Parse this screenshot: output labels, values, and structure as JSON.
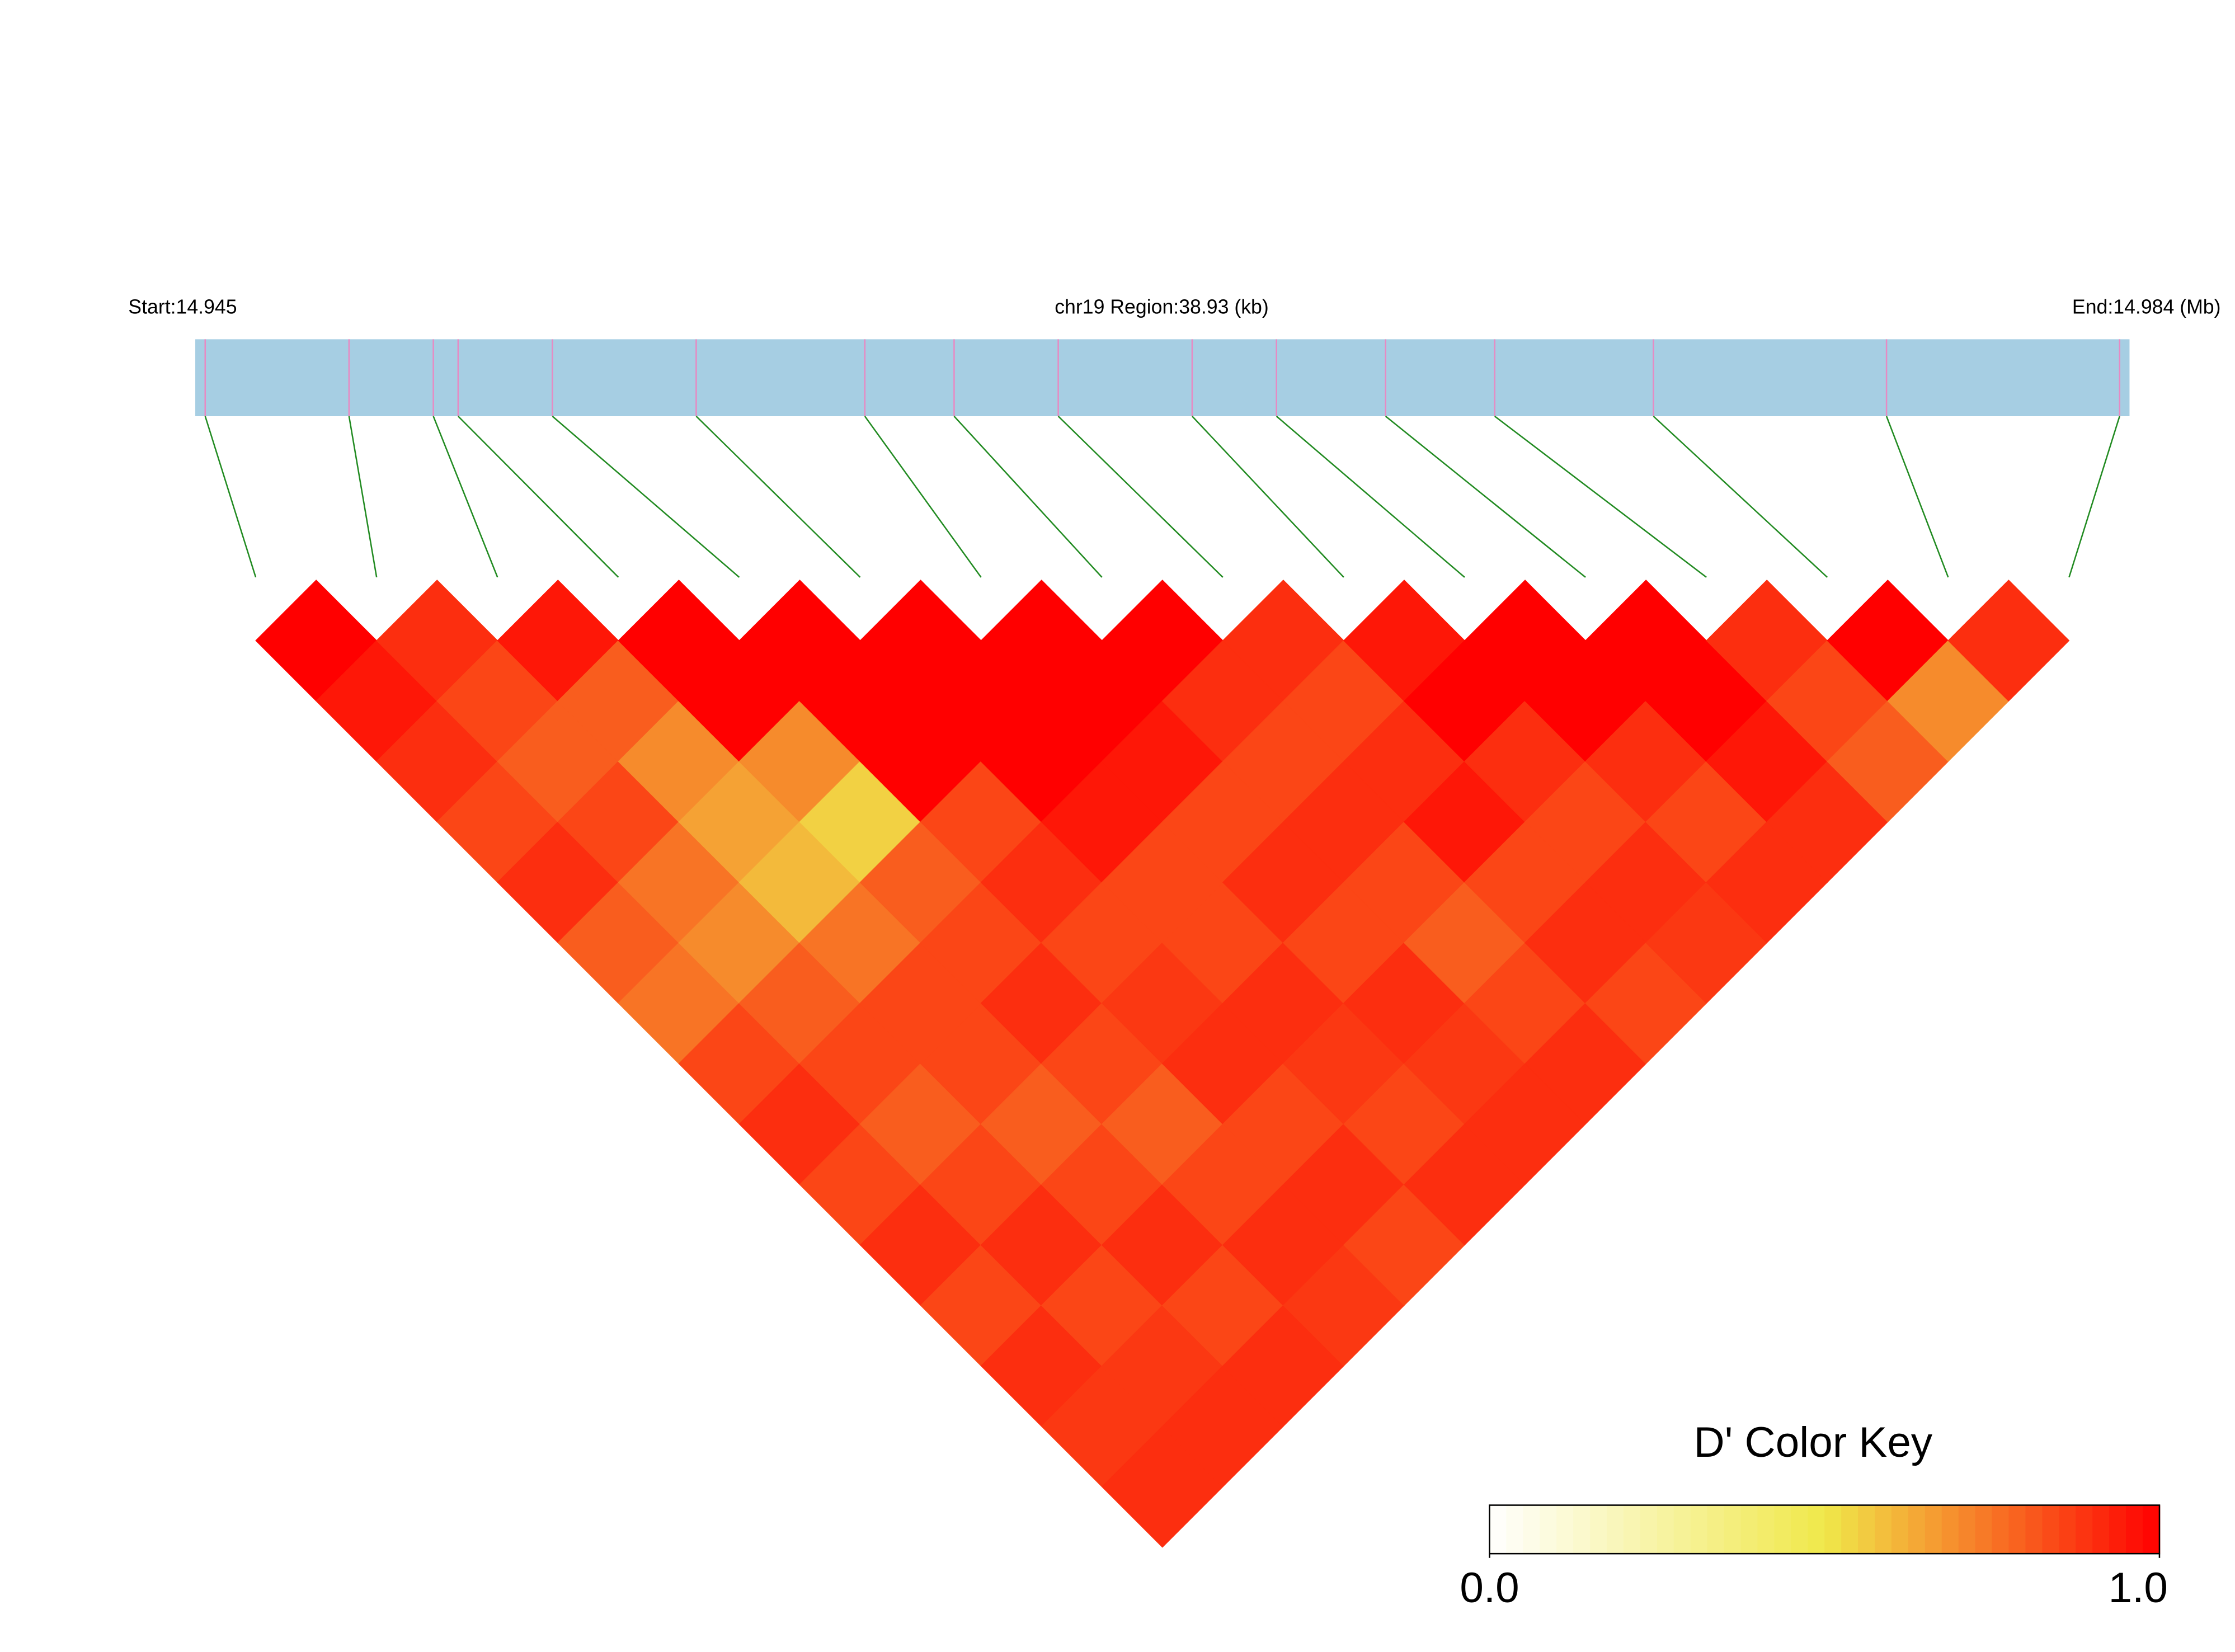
{
  "chart_data": {
    "type": "ld_heatmap",
    "start_label": "Start:14.945",
    "region_label": "chr19 Region:38.93 (kb)",
    "end_label": "End:14.984 (Mb)",
    "xlim": [
      14.945,
      14.984
    ],
    "snp_positions": [
      14.9452,
      14.9481,
      14.9498,
      14.9503,
      14.9522,
      14.9551,
      14.9585,
      14.9603,
      14.9624,
      14.9651,
      14.9668,
      14.969,
      14.9712,
      14.9744,
      14.9791,
      14.9838
    ],
    "dprime": [
      [
        1,
        0.95,
        0.9,
        0.85,
        0.9,
        0.8,
        0.75,
        0.85,
        0.9,
        0.85,
        0.9,
        0.85,
        0.9,
        0.88,
        0.9
      ],
      [
        0.9,
        0.85,
        0.8,
        0.85,
        0.75,
        0.7,
        0.8,
        0.85,
        0.8,
        0.85,
        0.9,
        0.85,
        0.88,
        0.9
      ],
      [
        0.95,
        0.8,
        0.7,
        0.65,
        0.6,
        0.75,
        0.85,
        0.85,
        0.8,
        0.85,
        0.9,
        0.85,
        0.9
      ],
      [
        1,
        1,
        0.7,
        0.55,
        0.8,
        0.85,
        0.9,
        0.85,
        0.8,
        0.85,
        0.9,
        0.88
      ],
      [
        1,
        1,
        1,
        0.85,
        0.9,
        0.85,
        0.88,
        0.9,
        0.85,
        0.9,
        0.85
      ],
      [
        1,
        1,
        1,
        0.95,
        0.85,
        0.85,
        0.9,
        0.88,
        0.85,
        0.9
      ],
      [
        1,
        1,
        0.95,
        0.85,
        0.9,
        0.85,
        0.9,
        0.88,
        0.9
      ],
      [
        1,
        0.9,
        0.85,
        0.9,
        0.85,
        0.8,
        0.85,
        0.9
      ],
      [
        0.9,
        0.85,
        0.9,
        0.95,
        0.85,
        0.9,
        0.85
      ],
      [
        0.95,
        1,
        0.9,
        0.85,
        0.9,
        0.88
      ],
      [
        1,
        1,
        0.9,
        0.85,
        0.9
      ],
      [
        1,
        1,
        0.95,
        0.9
      ],
      [
        0.9,
        0.85,
        0.8
      ],
      [
        1,
        0.7
      ],
      [
        0.9
      ]
    ],
    "gene_bar_color": "#a6cee3",
    "snp_tick_color": "#e78ac3",
    "connector_color": "#228b22",
    "color_scale": [
      "#ffffff",
      "#f0e84a",
      "#ff0000"
    ],
    "key_title": "D' Color Key",
    "key_lim": [
      0,
      1
    ],
    "key_ticks": [
      {
        "value": 0,
        "label": "0.0"
      },
      {
        "value": 1,
        "label": "1.0"
      }
    ]
  }
}
